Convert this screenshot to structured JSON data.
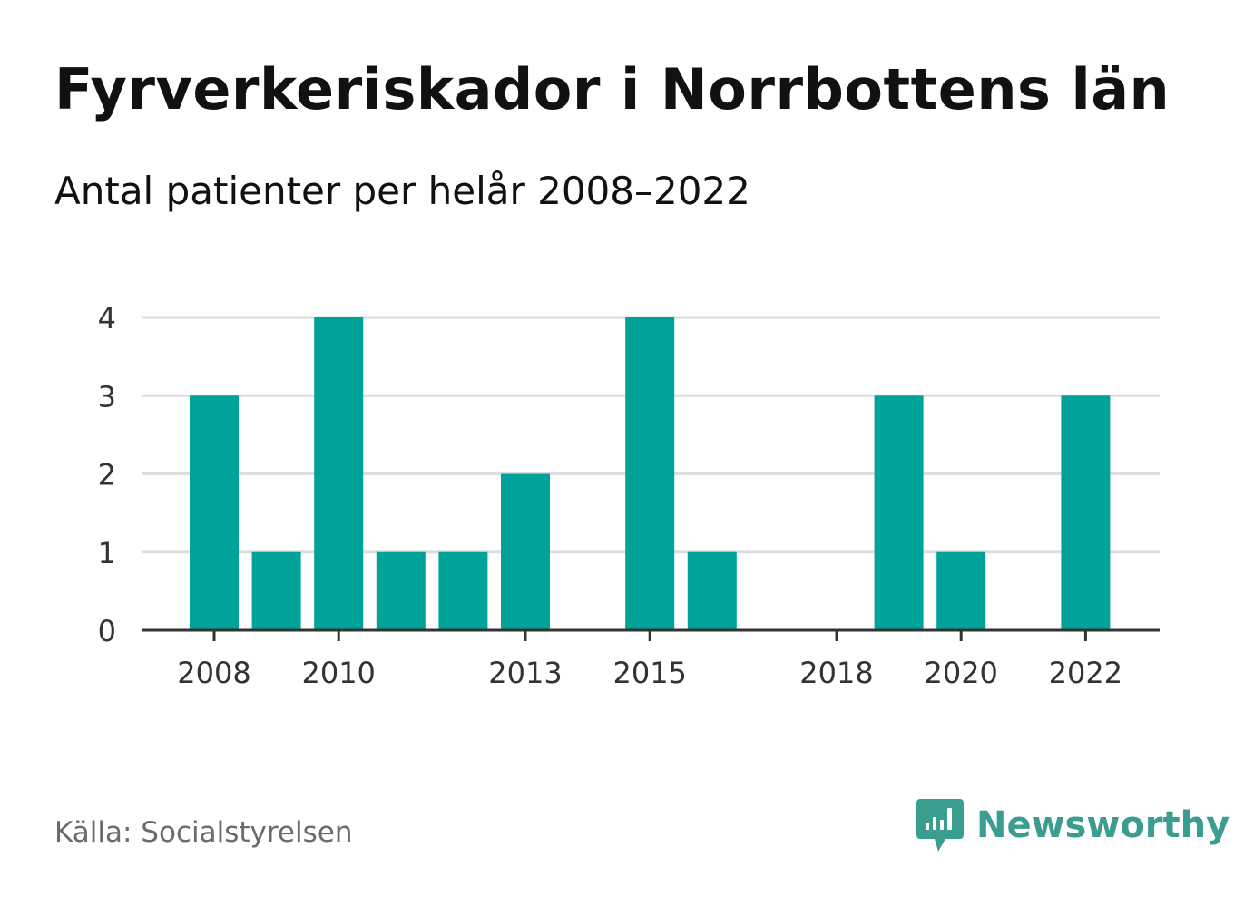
{
  "title": "Fyrverkeriskador i Norrbottens län",
  "subtitle": "Antal patienter per helår 2008–2022",
  "source": "Källa: Socialstyrelsen",
  "brand": {
    "name": "Newsworthy",
    "icon": "newsworthy-logo-icon"
  },
  "colors": {
    "bar": "#00a39a",
    "grid": "#dddddd",
    "axis": "#333333",
    "tick_text": "#333333",
    "source_text": "#6b6b6b",
    "brand": "#3a9d8f"
  },
  "chart_data": {
    "type": "bar",
    "categories": [
      "2008",
      "2009",
      "2010",
      "2011",
      "2012",
      "2013",
      "2014",
      "2015",
      "2016",
      "2017",
      "2018",
      "2019",
      "2020",
      "2021",
      "2022"
    ],
    "values": [
      3,
      1,
      4,
      1,
      1,
      2,
      0,
      4,
      1,
      0,
      0,
      3,
      1,
      0,
      3
    ],
    "x_tick_labels": [
      "2008",
      "2010",
      "2013",
      "2015",
      "2018",
      "2020",
      "2022"
    ],
    "y_ticks": [
      0,
      1,
      2,
      3,
      4
    ],
    "ylim": [
      0,
      4
    ],
    "xlabel": "",
    "ylabel": "",
    "grid": true,
    "legend": "none"
  }
}
